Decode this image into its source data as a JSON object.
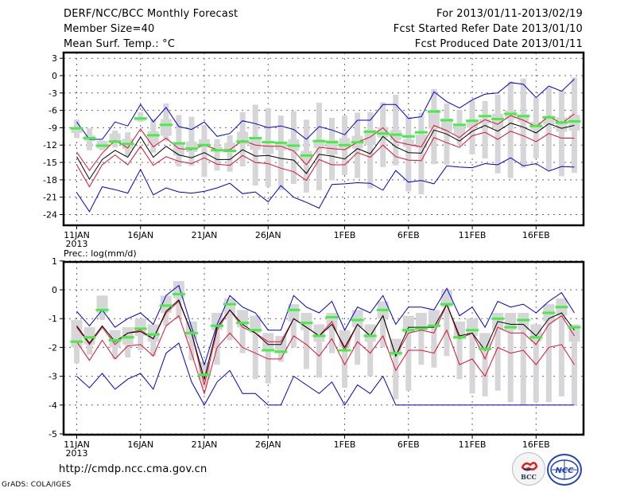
{
  "header": {
    "title": "DERF/NCC/BCC Monthly Forecast",
    "member_size": "Member Size=40",
    "variable": "Mean Surf. Temp.: °C",
    "period": "For 2013/01/11-2013/02/19",
    "start_date": "Fcst Started Refer Date 2013/01/10",
    "produced_date": "Fcst Produced Date 2013/01/11"
  },
  "footer": {
    "url": "http://cmdp.ncc.cma.gov.cn",
    "credit": "GrADS: COLA/IGES",
    "logos": [
      {
        "name": "bcc-logo",
        "label": "BCC"
      },
      {
        "name": "ncc-logo",
        "label": "NCC"
      }
    ]
  },
  "colors": {
    "extreme_line": "#0000cc",
    "quartile_line": "#dd1133",
    "median_line": "#000000",
    "box": "#d6d6d8",
    "marker": "#44ee44",
    "grid": "#666666"
  },
  "chart_data": [
    {
      "type": "line",
      "title": "Mean Surf. Temp.: °C",
      "xlabel": "",
      "ylabel": "°C",
      "ylim": [
        -26,
        4
      ],
      "yticks": [
        3,
        0,
        -3,
        -6,
        -9,
        -12,
        -15,
        -18,
        -21,
        -24
      ],
      "ytick_labels": [
        "3",
        "0",
        "-3",
        "-6",
        "-9",
        "-12",
        "-15",
        "-18",
        "-21",
        "-24"
      ],
      "xticks": [
        0,
        5,
        10,
        15,
        21,
        26,
        31,
        36
      ],
      "xtick_labels": [
        "11JAN",
        "16JAN",
        "21JAN",
        "26JAN",
        "1FEB",
        "6FEB",
        "11FEB",
        "16FEB"
      ],
      "xtick_sublabel": "2013",
      "grid": true,
      "x": [
        0,
        1,
        2,
        3,
        4,
        5,
        6,
        7,
        8,
        9,
        10,
        11,
        12,
        13,
        14,
        15,
        16,
        17,
        18,
        19,
        20,
        21,
        22,
        23,
        24,
        25,
        26,
        27,
        28,
        29,
        30,
        31,
        32,
        33,
        34,
        35,
        36,
        37,
        38,
        39
      ],
      "series": [
        {
          "name": "max",
          "color": "#0000cc",
          "values": [
            -8,
            -11,
            -11,
            -8,
            -8.7,
            -5,
            -8,
            -5.5,
            -8.8,
            -9.3,
            -8,
            -10.5,
            -10,
            -7.8,
            -8.3,
            -9,
            -8.7,
            -9.3,
            -11,
            -8.8,
            -9.4,
            -10.2,
            -7.7,
            -7.7,
            -5,
            -5,
            -7.4,
            -7.1,
            -2.8,
            -4.5,
            -5.6,
            -4.2,
            -3.2,
            -3,
            -1.2,
            -1.5,
            -3.8,
            -1.8,
            -2.7,
            -0.6
          ]
        },
        {
          "name": "upper-quartile",
          "color": "#dd1133",
          "values": [
            -13.2,
            -16.4,
            -13.4,
            -11.2,
            -12.5,
            -9.2,
            -12.3,
            -10.8,
            -12.6,
            -12.8,
            -12,
            -12.8,
            -12.8,
            -11.2,
            -12,
            -12.2,
            -12.2,
            -13,
            -15.4,
            -12.4,
            -12.6,
            -12.8,
            -11.5,
            -10.6,
            -9,
            -11.4,
            -11.9,
            -12.3,
            -8.6,
            -9.5,
            -10.7,
            -8.9,
            -7.6,
            -8.4,
            -6.9,
            -7.7,
            -8.8,
            -7,
            -8.3,
            -6.6
          ]
        },
        {
          "name": "median",
          "color": "#000000",
          "values": [
            -14,
            -17.9,
            -14.5,
            -12.9,
            -14.1,
            -10.6,
            -14.1,
            -12.2,
            -13.7,
            -14.2,
            -13.3,
            -14.5,
            -14.5,
            -12.8,
            -13.9,
            -13.8,
            -14.3,
            -14.6,
            -16.9,
            -13.6,
            -13.9,
            -14.4,
            -12.6,
            -13.5,
            -10.5,
            -12.3,
            -13.3,
            -13.4,
            -9.4,
            -10.1,
            -11.3,
            -9.6,
            -8.6,
            -9.6,
            -8.2,
            -8.9,
            -9.9,
            -8.3,
            -9.1,
            -8.6
          ]
        },
        {
          "name": "lower-quartile",
          "color": "#dd1133",
          "values": [
            -15.4,
            -19.2,
            -15.4,
            -13.7,
            -15.4,
            -12.2,
            -15.5,
            -14,
            -14.8,
            -15.2,
            -14.2,
            -15.3,
            -15.5,
            -13.8,
            -15,
            -15.2,
            -16,
            -16.6,
            -18.1,
            -14.5,
            -15.4,
            -15.4,
            -13.3,
            -14.1,
            -12,
            -14,
            -14.6,
            -14.7,
            -10.7,
            -11.6,
            -12.4,
            -10.4,
            -9.8,
            -11,
            -9.6,
            -10.4,
            -11.4,
            -10,
            -10.8,
            -10.8
          ]
        },
        {
          "name": "min",
          "color": "#0000cc",
          "values": [
            -20.2,
            -23.5,
            -19.2,
            -19.7,
            -20.3,
            -16.2,
            -20.6,
            -19.4,
            -20.1,
            -20.3,
            -20,
            -19.4,
            -18.6,
            -20.4,
            -20.1,
            -21.8,
            -19,
            -21,
            -21.9,
            -22.9,
            -18.8,
            -18.7,
            -18.5,
            -18.6,
            -19.8,
            -16.4,
            -18.4,
            -18.1,
            -18.7,
            -15.6,
            -15.8,
            -15.9,
            -15.2,
            -15.4,
            -14.2,
            -15.6,
            -15.2,
            -16.5,
            -15.7,
            -15.8
          ]
        }
      ],
      "boxes": {
        "whisker_low": [
          -10.8,
          -12.9,
          -12.9,
          -12.4,
          -13.9,
          -8,
          -13.3,
          -11.3,
          -15.7,
          -15.6,
          -17.5,
          -16.4,
          -16.6,
          -15.7,
          -19,
          -19.2,
          -19.8,
          -18.7,
          -20.2,
          -19.8,
          -18.1,
          -17.2,
          -17.7,
          -19.5,
          -15.8,
          -15.5,
          -20,
          -20.5,
          -15.3,
          -15.4,
          -11.9,
          -13.6,
          -14.3,
          -16.9,
          -17.7,
          -15.9,
          -14.3,
          -16.4,
          -17.4,
          -16.8
        ],
        "box_low": [
          -9.9,
          -11.3,
          -12.6,
          -11.5,
          -12.7,
          -7.8,
          -11.9,
          -10.4,
          -13.8,
          -13.2,
          -12.2,
          -13,
          -12.7,
          -11.8,
          -12.8,
          -13.5,
          -12.9,
          -13,
          -14.8,
          -12.5,
          -13.6,
          -12.6,
          -12.6,
          -12,
          -10.7,
          -11.2,
          -12.3,
          -12.5,
          -9.2,
          -9.6,
          -10.2,
          -9,
          -8.3,
          -9,
          -7.5,
          -8,
          -9.3,
          -8.5,
          -9.7,
          -9.5
        ],
        "box_high": [
          -8.9,
          -10.3,
          -11.3,
          -10,
          -10.9,
          -7.2,
          -9.6,
          -7.5,
          -11.8,
          -11.4,
          -11,
          -12.3,
          -11.6,
          -9.7,
          -10.6,
          -11.9,
          -11.6,
          -11,
          -13,
          -11.1,
          -11.1,
          -10.8,
          -10.4,
          -9.3,
          -8.9,
          -9.4,
          -11,
          -10.2,
          -6.4,
          -7.4,
          -8.5,
          -7.8,
          -7.5,
          -6.6,
          -6,
          -6.7,
          -8,
          -7.4,
          -7.2,
          -6.8
        ],
        "whisker_high": [
          -7.6,
          -9.1,
          -11.2,
          -9.5,
          -9.8,
          -6.3,
          -7.5,
          -4.8,
          -6.8,
          -7.1,
          -8.5,
          -11,
          -10.3,
          -6.3,
          -5,
          -5.6,
          -6.9,
          -6.1,
          -7.6,
          -4.7,
          -7.3,
          -6.9,
          -6.4,
          -6.3,
          -4.6,
          -3.3,
          -7.1,
          -6.4,
          -2.3,
          -4.8,
          -5.9,
          -4.3,
          -4.4,
          -3.3,
          -1,
          -0.5,
          -3.8,
          -2.1,
          -2.5,
          -0.3
        ],
        "marker": [
          -9.1,
          -10.8,
          -12.1,
          -11.4,
          -11.8,
          -7.4,
          -10.3,
          -8.5,
          -11.7,
          -12.6,
          -12,
          -12.9,
          -13,
          -11.4,
          -10.8,
          -11.5,
          -11.6,
          -12.1,
          -13.8,
          -11.3,
          -11.5,
          -12,
          -11.5,
          -9.7,
          -10,
          -10.2,
          -10.5,
          -9.8,
          -6.2,
          -7.7,
          -8.5,
          -7.8,
          -7,
          -7.5,
          -6.6,
          -7,
          -8.7,
          -7.2,
          -8.1,
          -7.9
        ]
      }
    },
    {
      "type": "line",
      "title": "Prec.: log(mm/d)",
      "xlabel": "",
      "ylabel": "log(mm/d)",
      "ylim": [
        -5,
        1
      ],
      "yticks": [
        1,
        0,
        -1,
        -2,
        -3,
        -4,
        -5
      ],
      "ytick_labels": [
        "1",
        "0",
        "-1",
        "-2",
        "-3",
        "-4",
        "-5"
      ],
      "xticks": [
        0,
        5,
        10,
        15,
        21,
        26,
        31,
        36
      ],
      "xtick_labels": [
        "11JAN",
        "16JAN",
        "21JAN",
        "26JAN",
        "1FEB",
        "6FEB",
        "11FEB",
        "16FEB"
      ],
      "xtick_sublabel": "2013",
      "grid": true,
      "x": [
        0,
        1,
        2,
        3,
        4,
        5,
        6,
        7,
        8,
        9,
        10,
        11,
        12,
        13,
        14,
        15,
        16,
        17,
        18,
        19,
        20,
        21,
        22,
        23,
        24,
        25,
        26,
        27,
        28,
        29,
        30,
        31,
        32,
        33,
        34,
        35,
        36,
        37,
        38,
        39
      ],
      "series": [
        {
          "name": "max",
          "color": "#0000cc",
          "values": [
            -0.75,
            -1.25,
            -0.7,
            -1.3,
            -1,
            -0.8,
            -1.2,
            -0.2,
            0.15,
            -1.3,
            -2.6,
            -1.2,
            -0.2,
            -0.6,
            -0.8,
            -1.4,
            -1.4,
            -0.2,
            -0.6,
            -0.8,
            -0.4,
            -1.4,
            -0.6,
            -0.8,
            -0.2,
            -1.2,
            -0.6,
            -0.6,
            -0.7,
            0.05,
            -0.9,
            -0.6,
            -1.3,
            -0.4,
            -0.6,
            -0.5,
            -0.8,
            -0.4,
            -0.1,
            -0.8
          ]
        },
        {
          "name": "upper-quartile",
          "color": "#dd1133",
          "values": [
            -1.3,
            -1.9,
            -1.3,
            -1.9,
            -1.5,
            -1.4,
            -1.7,
            -0.8,
            -0.4,
            -1.5,
            -3.3,
            -1.4,
            -0.7,
            -1.3,
            -1.5,
            -1.8,
            -1.8,
            -1,
            -1.3,
            -1.6,
            -1.1,
            -2.1,
            -1.2,
            -1.6,
            -0.9,
            -2.3,
            -1.5,
            -1.4,
            -1.5,
            -0.5,
            -1.7,
            -1.5,
            -2.4,
            -1.3,
            -1.5,
            -1.5,
            -1.9,
            -1.2,
            -0.9,
            -1.6
          ]
        },
        {
          "name": "median",
          "color": "#000000",
          "values": [
            -1.25,
            -1.85,
            -1.25,
            -1.8,
            -1.5,
            -1.45,
            -1.7,
            -0.75,
            -0.35,
            -1.5,
            -3.1,
            -1.3,
            -0.7,
            -1.2,
            -1.5,
            -1.9,
            -1.9,
            -1,
            -1.3,
            -1.6,
            -1.2,
            -2.0,
            -1.2,
            -1.6,
            -0.9,
            -2.3,
            -1.3,
            -1.3,
            -1.3,
            -0.5,
            -1.6,
            -1.5,
            -2.1,
            -1.1,
            -1.2,
            -1.2,
            -1.6,
            -1.0,
            -0.8,
            -1.4
          ]
        },
        {
          "name": "lower-quartile",
          "color": "#dd1133",
          "values": [
            -1.8,
            -2.45,
            -1.75,
            -2.4,
            -1.95,
            -1.9,
            -2.3,
            -1.25,
            -0.9,
            -2.2,
            -3.6,
            -2.0,
            -1.5,
            -2.0,
            -2.2,
            -2.4,
            -2.4,
            -1.6,
            -1.9,
            -2.3,
            -1.7,
            -2.6,
            -1.8,
            -2.2,
            -1.6,
            -2.8,
            -2.1,
            -2.1,
            -2.2,
            -1.4,
            -2.6,
            -2.4,
            -3.0,
            -2.0,
            -2.2,
            -2.1,
            -2.6,
            -2.0,
            -1.9,
            -2.6
          ]
        },
        {
          "name": "min",
          "color": "#0000cc",
          "values": [
            -3.0,
            -3.4,
            -2.9,
            -3.45,
            -3.1,
            -2.9,
            -3.45,
            -2.2,
            -1.85,
            -3.2,
            -4.0,
            -3.2,
            -2.8,
            -3.6,
            -3.6,
            -4.0,
            -4.0,
            -3.0,
            -3.3,
            -3.6,
            -3.2,
            -4.0,
            -3.3,
            -3.6,
            -3.0,
            -4.0,
            -4.0,
            -4.0,
            -4.0,
            -4.0,
            -4.0,
            -4.0,
            -4.0,
            -4.0,
            -4.0,
            -4.0,
            -4.0,
            -4.0,
            -4.0,
            -4.0
          ]
        }
      ],
      "boxes": {
        "whisker_low": [
          -2.55,
          -2.25,
          -1.05,
          -2.4,
          -2.35,
          -2.1,
          -2.3,
          -1.25,
          -1.0,
          -2.45,
          -3.4,
          -2.6,
          -1.75,
          -2.2,
          -3.1,
          -3.25,
          -2.5,
          -2.0,
          -2.75,
          -3.05,
          -2.2,
          -3.4,
          -2.6,
          -3.0,
          -2.0,
          -3.8,
          -3.5,
          -2.6,
          -2.7,
          -2.3,
          -3.1,
          -3.6,
          -3.7,
          -3.5,
          -3.9,
          -4.0,
          -3.9,
          -3.9,
          -3.7,
          -4.0
        ],
        "box_low": [
          -2.0,
          -1.9,
          -0.8,
          -2.0,
          -1.9,
          -1.6,
          -1.8,
          -0.8,
          -0.3,
          -1.7,
          -3.1,
          -1.4,
          -0.9,
          -1.3,
          -1.5,
          -2.1,
          -2.2,
          -1.1,
          -1.4,
          -1.8,
          -1.4,
          -2.0,
          -1.3,
          -1.8,
          -1.0,
          -2.3,
          -1.5,
          -1.4,
          -1.3,
          -0.6,
          -1.7,
          -1.6,
          -2.1,
          -1.4,
          -1.4,
          -1.4,
          -1.8,
          -1.1,
          -0.9,
          -1.8
        ]
      }
    }
  ]
}
